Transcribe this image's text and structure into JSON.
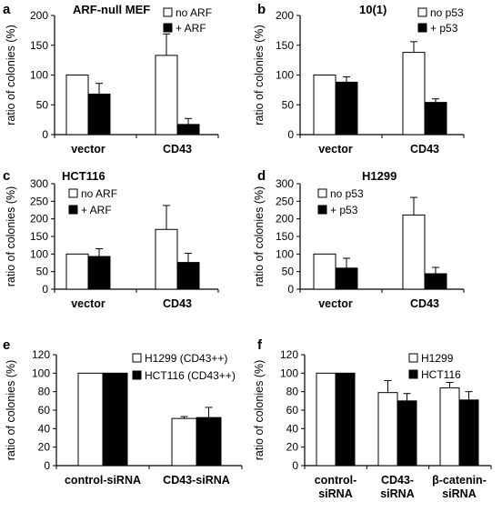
{
  "figure": {
    "panels": [
      {
        "letter": "a",
        "title": "ARF-null MEF"
      },
      {
        "letter": "b",
        "title": "10(1)"
      },
      {
        "letter": "c",
        "title": "HCT116"
      },
      {
        "letter": "d",
        "title": "H1299"
      },
      {
        "letter": "e",
        "title": ""
      },
      {
        "letter": "f",
        "title": ""
      }
    ]
  },
  "chart_data": [
    {
      "type": "bar",
      "title": "ARF-null MEF",
      "ylabel": "ratio of colonies (%)",
      "ylim": [
        0,
        200
      ],
      "yticks": [
        0,
        50,
        100,
        150,
        200
      ],
      "categories": [
        "vector",
        "CD43"
      ],
      "series": [
        {
          "name": "no ARF",
          "color": "#ffffff",
          "values": [
            100,
            133
          ],
          "errors": [
            0,
            36
          ]
        },
        {
          "name": "+ ARF",
          "color": "#000000",
          "values": [
            68,
            17
          ],
          "errors": [
            18,
            10
          ]
        }
      ],
      "legend": "top-right"
    },
    {
      "type": "bar",
      "title": "10(1)",
      "ylabel": "ratio of colonies (%)",
      "ylim": [
        0,
        200
      ],
      "yticks": [
        0,
        50,
        100,
        150,
        200
      ],
      "categories": [
        "vector",
        "CD43"
      ],
      "series": [
        {
          "name": "no p53",
          "color": "#ffffff",
          "values": [
            100,
            138
          ],
          "errors": [
            0,
            18
          ]
        },
        {
          "name": "+ p53",
          "color": "#000000",
          "values": [
            88,
            54
          ],
          "errors": [
            9,
            6
          ]
        }
      ],
      "legend": "top-right"
    },
    {
      "type": "bar",
      "title": "HCT116",
      "ylabel": "ratio of colonies (%)",
      "ylim": [
        0,
        300
      ],
      "yticks": [
        0,
        50,
        100,
        150,
        200,
        250,
        300
      ],
      "categories": [
        "vector",
        "CD43"
      ],
      "series": [
        {
          "name": "no ARF",
          "color": "#ffffff",
          "values": [
            100,
            170
          ],
          "errors": [
            0,
            68
          ]
        },
        {
          "name": "+ ARF",
          "color": "#000000",
          "values": [
            93,
            76
          ],
          "errors": [
            22,
            26
          ]
        }
      ],
      "legend": "top-right"
    },
    {
      "type": "bar",
      "title": "H1299",
      "ylabel": "ratio of colonies (%)",
      "ylim": [
        0,
        300
      ],
      "yticks": [
        0,
        50,
        100,
        150,
        200,
        250,
        300
      ],
      "categories": [
        "vector",
        "CD43"
      ],
      "series": [
        {
          "name": "no p53",
          "color": "#ffffff",
          "values": [
            100,
            211
          ],
          "errors": [
            0,
            50
          ]
        },
        {
          "name": "+ p53",
          "color": "#000000",
          "values": [
            60,
            44
          ],
          "errors": [
            28,
            18
          ]
        }
      ],
      "legend": "top-right"
    },
    {
      "type": "bar",
      "title": "",
      "ylabel": "ratio of colonies (%)",
      "ylim": [
        0,
        120
      ],
      "yticks": [
        0,
        20,
        40,
        60,
        80,
        100,
        120
      ],
      "categories": [
        "control-siRNA",
        "CD43-siRNA"
      ],
      "series": [
        {
          "name": "H1299 (CD43++)",
          "color": "#ffffff",
          "values": [
            100,
            51
          ],
          "errors": [
            0,
            2
          ]
        },
        {
          "name": "HCT116 (CD43++)",
          "color": "#000000",
          "values": [
            100,
            52
          ],
          "errors": [
            0,
            11
          ]
        }
      ],
      "legend": "top-right"
    },
    {
      "type": "bar",
      "title": "",
      "ylabel": "ratio of colonies (%)",
      "ylim": [
        0,
        120
      ],
      "yticks": [
        0,
        20,
        40,
        60,
        80,
        100,
        120
      ],
      "categories": [
        "control-\nsiRNA",
        "CD43-\nsiRNA",
        "β-catenin-\nsiRNA"
      ],
      "series": [
        {
          "name": "H1299",
          "color": "#ffffff",
          "values": [
            100,
            79,
            84
          ],
          "errors": [
            0,
            13,
            6
          ]
        },
        {
          "name": "HCT116",
          "color": "#000000",
          "values": [
            100,
            70,
            71
          ],
          "errors": [
            0,
            8,
            9
          ]
        }
      ],
      "legend": "top-right"
    }
  ]
}
